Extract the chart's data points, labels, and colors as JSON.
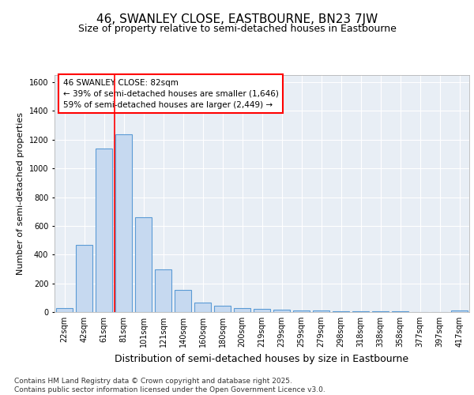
{
  "title": "46, SWANLEY CLOSE, EASTBOURNE, BN23 7JW",
  "subtitle": "Size of property relative to semi-detached houses in Eastbourne",
  "xlabel": "Distribution of semi-detached houses by size in Eastbourne",
  "ylabel": "Number of semi-detached properties",
  "categories": [
    "22sqm",
    "42sqm",
    "61sqm",
    "81sqm",
    "101sqm",
    "121sqm",
    "140sqm",
    "160sqm",
    "180sqm",
    "200sqm",
    "219sqm",
    "239sqm",
    "259sqm",
    "279sqm",
    "298sqm",
    "318sqm",
    "338sqm",
    "358sqm",
    "377sqm",
    "397sqm",
    "417sqm"
  ],
  "values": [
    25,
    470,
    1140,
    1240,
    660,
    295,
    155,
    65,
    45,
    30,
    20,
    15,
    12,
    10,
    8,
    5,
    4,
    3,
    2,
    2,
    10
  ],
  "bar_color": "#c6d9f0",
  "bar_edge_color": "#5b9bd5",
  "red_line_index": 3,
  "annotation_text_line1": "46 SWANLEY CLOSE: 82sqm",
  "annotation_text_line2": "← 39% of semi-detached houses are smaller (1,646)",
  "annotation_text_line3": "59% of semi-detached houses are larger (2,449) →",
  "ylim": [
    0,
    1650
  ],
  "yticks": [
    0,
    200,
    400,
    600,
    800,
    1000,
    1200,
    1400,
    1600
  ],
  "bg_color": "#ffffff",
  "plot_bg_color": "#e8eef5",
  "footer_line1": "Contains HM Land Registry data © Crown copyright and database right 2025.",
  "footer_line2": "Contains public sector information licensed under the Open Government Licence v3.0.",
  "grid_color": "#ffffff",
  "title_fontsize": 11,
  "subtitle_fontsize": 9,
  "xlabel_fontsize": 9,
  "ylabel_fontsize": 8,
  "tick_fontsize": 7,
  "annotation_fontsize": 7.5,
  "footer_fontsize": 6.5
}
